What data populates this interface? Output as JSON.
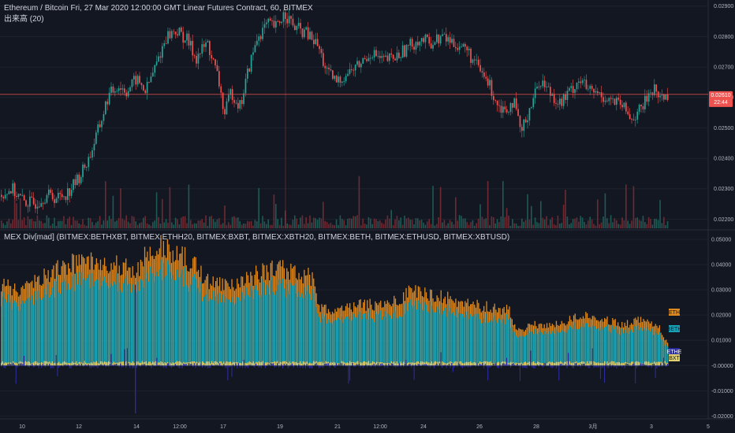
{
  "colors": {
    "background": "#131722",
    "up": "#26a69a",
    "down": "#ef5350",
    "volume_up": "#1f5a55",
    "volume_down": "#6e2a33",
    "price_line": "#ef5350",
    "divider": "#2a2e39",
    "teal": "#17a2b8",
    "orange": "#e08a1e",
    "navy": "#2b2b9e",
    "yellow": "#e0d070"
  },
  "chart_data": [
    {
      "type": "candlestick",
      "title": "Ethereum / Bitcoin Fri, 27 Mar 2020 12:00:00 GMT Linear Futures Contract, 60, BITMEX",
      "subtitle": "出来高 (20)",
      "y_ticks": [
        "0.02900",
        "0.02800",
        "0.02700",
        "0.02600",
        "0.02500",
        "0.02400",
        "0.02300",
        "0.02200"
      ],
      "ylim": [
        0.0217,
        0.0292
      ],
      "last_price_label": "0.02610",
      "countdown_label": "22:44",
      "x_ticks": [
        "10",
        "12",
        "14",
        "12:00",
        "17",
        "19",
        "21",
        "12:00",
        "24",
        "26",
        "28",
        "3月",
        "3",
        "5"
      ],
      "price_path": [
        [
          0,
          0.0228
        ],
        [
          14,
          0.023
        ],
        [
          28,
          0.0226
        ],
        [
          42,
          0.0225
        ],
        [
          58,
          0.0228
        ],
        [
          72,
          0.0227
        ],
        [
          86,
          0.0229
        ],
        [
          100,
          0.0234
        ],
        [
          112,
          0.024
        ],
        [
          126,
          0.0251
        ],
        [
          136,
          0.026
        ],
        [
          148,
          0.0264
        ],
        [
          160,
          0.0262
        ],
        [
          172,
          0.0266
        ],
        [
          184,
          0.0262
        ],
        [
          196,
          0.027
        ],
        [
          210,
          0.028
        ],
        [
          222,
          0.0282
        ],
        [
          236,
          0.0279
        ],
        [
          248,
          0.0273
        ],
        [
          262,
          0.0278
        ],
        [
          276,
          0.0266
        ],
        [
          284,
          0.0254
        ],
        [
          292,
          0.0262
        ],
        [
          304,
          0.0257
        ],
        [
          314,
          0.0269
        ],
        [
          326,
          0.028
        ],
        [
          338,
          0.0284
        ],
        [
          350,
          0.0283
        ],
        [
          360,
          0.0288
        ],
        [
          372,
          0.0283
        ],
        [
          388,
          0.0281
        ],
        [
          402,
          0.0277
        ],
        [
          414,
          0.0268
        ],
        [
          426,
          0.0265
        ],
        [
          440,
          0.0268
        ],
        [
          456,
          0.0271
        ],
        [
          470,
          0.0275
        ],
        [
          484,
          0.0272
        ],
        [
          500,
          0.0273
        ],
        [
          514,
          0.0276
        ],
        [
          530,
          0.0279
        ],
        [
          546,
          0.0278
        ],
        [
          560,
          0.028
        ],
        [
          574,
          0.0278
        ],
        [
          590,
          0.0276
        ],
        [
          604,
          0.027
        ],
        [
          618,
          0.0265
        ],
        [
          630,
          0.0258
        ],
        [
          640,
          0.0256
        ],
        [
          650,
          0.0259
        ],
        [
          660,
          0.0248
        ],
        [
          670,
          0.0256
        ],
        [
          684,
          0.0266
        ],
        [
          696,
          0.0262
        ],
        [
          710,
          0.0258
        ],
        [
          722,
          0.0262
        ],
        [
          734,
          0.0266
        ],
        [
          746,
          0.0262
        ],
        [
          760,
          0.0261
        ],
        [
          774,
          0.0259
        ],
        [
          788,
          0.0257
        ],
        [
          800,
          0.0253
        ],
        [
          812,
          0.0256
        ],
        [
          826,
          0.0263
        ],
        [
          838,
          0.026
        ],
        [
          846,
          0.0261
        ]
      ]
    },
    {
      "type": "bar",
      "title": "MEX Div[mad] (BITMEX:BETHXBT, BITMEX:ETHH20, BITMEX:BXBT, BITMEX:XBTH20, BITMEX:BETH, BITMEX:ETHUSD, BITMEX:XBTUSD)",
      "y_ticks": [
        "0.05000",
        "0.04000",
        "0.03000",
        "0.02000",
        "0.01000",
        "-0.00000",
        "-0.01000",
        "-0.02000"
      ],
      "ylim": [
        -0.0205,
        0.0525
      ],
      "tags": [
        {
          "label": "ETH",
          "color": "#e08a1e"
        },
        {
          "label": "BETH",
          "color": "#17a2b8"
        },
        {
          "label": "ETHE",
          "color": "#2b2b9e"
        },
        {
          "label": "BXT",
          "color": "#e0d070"
        }
      ],
      "series_path": [
        [
          0,
          0.031
        ],
        [
          30,
          0.03
        ],
        [
          60,
          0.036
        ],
        [
          90,
          0.04
        ],
        [
          120,
          0.041
        ],
        [
          150,
          0.039
        ],
        [
          175,
          0.038
        ],
        [
          190,
          0.046
        ],
        [
          205,
          0.047
        ],
        [
          220,
          0.044
        ],
        [
          240,
          0.041
        ],
        [
          260,
          0.034
        ],
        [
          290,
          0.031
        ],
        [
          320,
          0.035
        ],
        [
          350,
          0.038
        ],
        [
          375,
          0.037
        ],
        [
          395,
          0.034
        ],
        [
          405,
          0.022
        ],
        [
          430,
          0.022
        ],
        [
          460,
          0.024
        ],
        [
          490,
          0.024
        ],
        [
          520,
          0.029
        ],
        [
          550,
          0.028
        ],
        [
          580,
          0.025
        ],
        [
          610,
          0.023
        ],
        [
          645,
          0.022
        ],
        [
          655,
          0.014
        ],
        [
          680,
          0.016
        ],
        [
          710,
          0.016
        ],
        [
          735,
          0.02
        ],
        [
          760,
          0.018
        ],
        [
          790,
          0.016
        ],
        [
          815,
          0.018
        ],
        [
          835,
          0.016
        ],
        [
          846,
          0.008
        ]
      ]
    }
  ]
}
